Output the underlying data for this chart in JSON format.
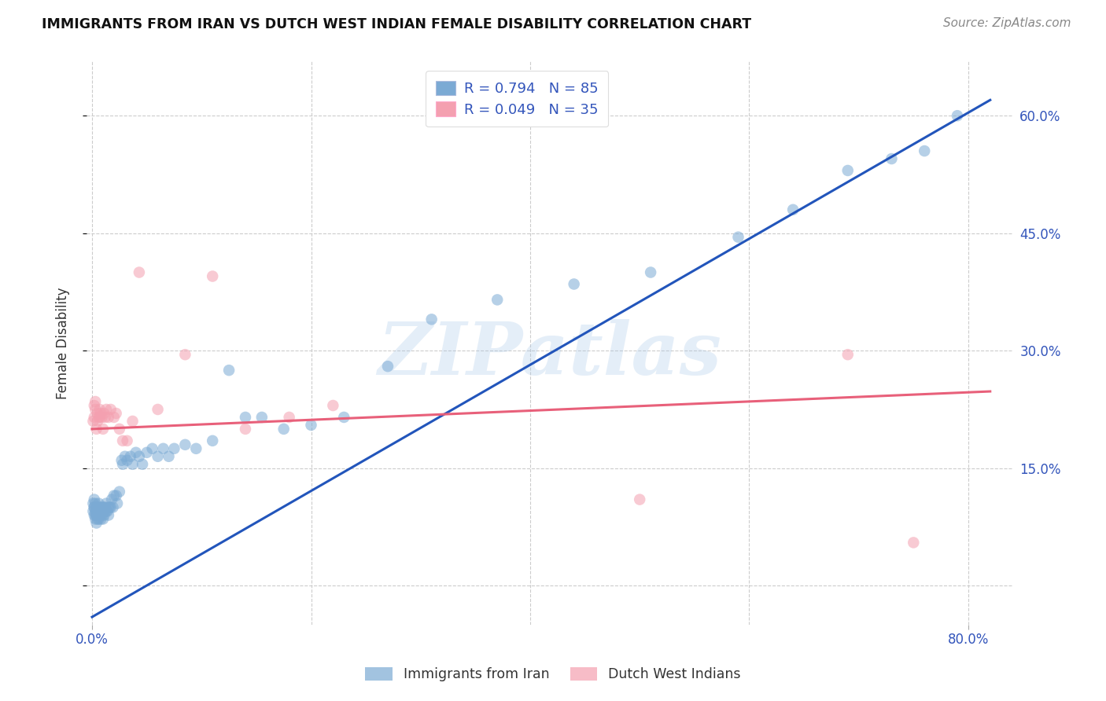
{
  "title": "IMMIGRANTS FROM IRAN VS DUTCH WEST INDIAN FEMALE DISABILITY CORRELATION CHART",
  "source": "Source: ZipAtlas.com",
  "ylabel": "Female Disability",
  "xlim": [
    -0.005,
    0.84
  ],
  "ylim": [
    -0.05,
    0.67
  ],
  "blue_color": "#7BAAD4",
  "pink_color": "#F4A0B0",
  "blue_line_color": "#2255BB",
  "pink_line_color": "#E8607A",
  "legend_label_blue": "Immigrants from Iran",
  "legend_label_pink": "Dutch West Indians",
  "blue_R": "0.794",
  "blue_N": "85",
  "pink_R": "0.049",
  "pink_N": "35",
  "blue_x": [
    0.001,
    0.001,
    0.002,
    0.002,
    0.002,
    0.002,
    0.003,
    0.003,
    0.003,
    0.003,
    0.004,
    0.004,
    0.004,
    0.004,
    0.005,
    0.005,
    0.005,
    0.005,
    0.006,
    0.006,
    0.006,
    0.006,
    0.007,
    0.007,
    0.007,
    0.008,
    0.008,
    0.008,
    0.009,
    0.009,
    0.01,
    0.01,
    0.01,
    0.011,
    0.011,
    0.012,
    0.012,
    0.013,
    0.013,
    0.014,
    0.015,
    0.015,
    0.016,
    0.017,
    0.018,
    0.019,
    0.02,
    0.022,
    0.023,
    0.025,
    0.027,
    0.028,
    0.03,
    0.032,
    0.035,
    0.037,
    0.04,
    0.043,
    0.046,
    0.05,
    0.055,
    0.06,
    0.065,
    0.07,
    0.075,
    0.085,
    0.095,
    0.11,
    0.125,
    0.14,
    0.155,
    0.175,
    0.2,
    0.23,
    0.27,
    0.31,
    0.37,
    0.44,
    0.51,
    0.59,
    0.64,
    0.69,
    0.73,
    0.76,
    0.79
  ],
  "blue_y": [
    0.095,
    0.105,
    0.09,
    0.1,
    0.1,
    0.11,
    0.085,
    0.09,
    0.095,
    0.105,
    0.08,
    0.09,
    0.095,
    0.1,
    0.085,
    0.09,
    0.095,
    0.1,
    0.085,
    0.09,
    0.095,
    0.105,
    0.09,
    0.095,
    0.1,
    0.085,
    0.095,
    0.1,
    0.09,
    0.095,
    0.085,
    0.095,
    0.1,
    0.09,
    0.1,
    0.095,
    0.1,
    0.095,
    0.105,
    0.095,
    0.09,
    0.1,
    0.1,
    0.1,
    0.11,
    0.1,
    0.115,
    0.115,
    0.105,
    0.12,
    0.16,
    0.155,
    0.165,
    0.16,
    0.165,
    0.155,
    0.17,
    0.165,
    0.155,
    0.17,
    0.175,
    0.165,
    0.175,
    0.165,
    0.175,
    0.18,
    0.175,
    0.185,
    0.275,
    0.215,
    0.215,
    0.2,
    0.205,
    0.215,
    0.28,
    0.34,
    0.365,
    0.385,
    0.4,
    0.445,
    0.48,
    0.53,
    0.545,
    0.555,
    0.6
  ],
  "pink_x": [
    0.001,
    0.002,
    0.002,
    0.003,
    0.003,
    0.004,
    0.005,
    0.005,
    0.006,
    0.007,
    0.007,
    0.008,
    0.009,
    0.01,
    0.011,
    0.012,
    0.013,
    0.015,
    0.017,
    0.02,
    0.022,
    0.025,
    0.028,
    0.032,
    0.037,
    0.043,
    0.06,
    0.085,
    0.11,
    0.14,
    0.18,
    0.22,
    0.5,
    0.69,
    0.75
  ],
  "pink_y": [
    0.21,
    0.215,
    0.23,
    0.225,
    0.235,
    0.2,
    0.21,
    0.22,
    0.215,
    0.215,
    0.225,
    0.22,
    0.215,
    0.2,
    0.22,
    0.215,
    0.225,
    0.215,
    0.225,
    0.215,
    0.22,
    0.2,
    0.185,
    0.185,
    0.21,
    0.4,
    0.225,
    0.295,
    0.395,
    0.2,
    0.215,
    0.23,
    0.11,
    0.295,
    0.055
  ],
  "blue_trend_x": [
    0.0,
    0.82
  ],
  "blue_trend_y": [
    -0.04,
    0.62
  ],
  "pink_trend_x": [
    0.0,
    0.82
  ],
  "pink_trend_y": [
    0.2,
    0.248
  ],
  "watermark": "ZIPatlas",
  "background_color": "#FFFFFF",
  "grid_color": "#CCCCCC",
  "y_ticks": [
    0.0,
    0.15,
    0.3,
    0.45,
    0.6
  ],
  "y_tick_labels": [
    "",
    "15.0%",
    "30.0%",
    "45.0%",
    "60.0%"
  ],
  "x_ticks": [
    0.0,
    0.8
  ],
  "x_tick_labels": [
    "0.0%",
    "80.0%"
  ],
  "text_blue": "#3355BB",
  "text_dark": "#333333"
}
